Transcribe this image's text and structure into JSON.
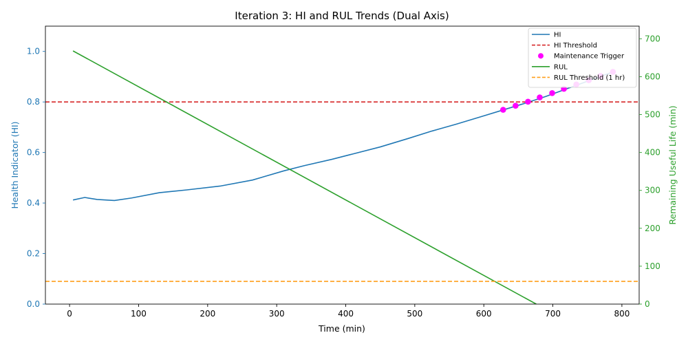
{
  "chart_data": {
    "type": "line",
    "title": "Iteration 3: HI and RUL Trends (Dual Axis)",
    "xlabel": "Time (min)",
    "ylabel_left": "Health Indicator (HI)",
    "ylabel_right": "Remaining Useful Life (min)",
    "xlim": [
      -35,
      825
    ],
    "ylim_left": [
      0,
      1.1
    ],
    "ylim_right": [
      0,
      733.33
    ],
    "x_ticks": [
      0,
      100,
      200,
      300,
      400,
      500,
      600,
      700,
      800
    ],
    "y_left_ticks": [
      0.0,
      0.2,
      0.4,
      0.6,
      0.8,
      1.0
    ],
    "y_left_tick_labels": [
      "0.0",
      "0.2",
      "0.4",
      "0.6",
      "0.8",
      "1.0"
    ],
    "y_right_ticks": [
      0,
      100,
      200,
      300,
      400,
      500,
      600,
      700
    ],
    "grid": false,
    "legend_position": "top-right",
    "colors": {
      "hi": "#1f77b4",
      "hi_threshold": "#d62728",
      "trigger": "#ff00ff",
      "rul": "#2ca02c",
      "rul_threshold": "#ff9f1a"
    },
    "series": [
      {
        "name": "HI",
        "axis": "left",
        "style": "line",
        "color": "#1f77b4",
        "x": [
          5,
          22,
          40,
          65,
          90,
          130,
          170,
          218,
          265,
          310,
          340,
          380,
          410,
          450,
          490,
          525,
          560,
          600,
          630,
          660,
          690,
          720,
          750,
          785
        ],
        "y": [
          0.412,
          0.422,
          0.414,
          0.41,
          0.42,
          0.441,
          0.452,
          0.467,
          0.491,
          0.527,
          0.548,
          0.573,
          0.594,
          0.622,
          0.655,
          0.685,
          0.712,
          0.745,
          0.77,
          0.795,
          0.822,
          0.852,
          0.882,
          0.917
        ]
      },
      {
        "name": "HI Threshold",
        "axis": "left",
        "style": "hline-dashed",
        "color": "#d62728",
        "y": 0.8
      },
      {
        "name": "Maintenance Trigger",
        "axis": "left",
        "style": "scatter",
        "color": "#ff00ff",
        "x": [
          628,
          646,
          664,
          681,
          699,
          716,
          734,
          752,
          769,
          787
        ],
        "y": [
          0.769,
          0.785,
          0.801,
          0.818,
          0.835,
          0.852,
          0.869,
          0.886,
          0.903,
          0.919
        ]
      },
      {
        "name": "RUL",
        "axis": "right",
        "style": "line",
        "color": "#2ca02c",
        "x": [
          5,
          676
        ],
        "y": [
          668,
          0
        ]
      },
      {
        "name": "RUL Threshold (1 hr)",
        "axis": "right",
        "style": "hline-dashed",
        "color": "#ff9f1a",
        "y": 60
      }
    ]
  }
}
